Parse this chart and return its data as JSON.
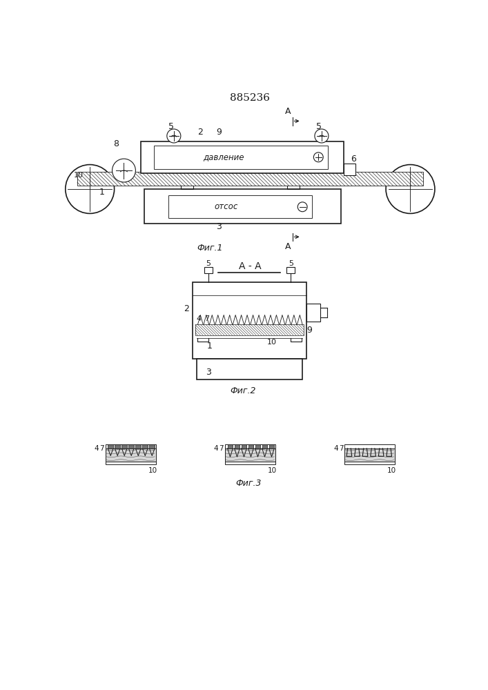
{
  "title": "885236",
  "bg_color": "#ffffff",
  "line_color": "#1a1a1a",
  "fig1_label": "Фиг.1",
  "fig2_label": "Фиг.2",
  "fig3_label": "Фиг.3",
  "aa_label": "А - А",
  "davlenie": "давление",
  "otsoc": "отсос"
}
